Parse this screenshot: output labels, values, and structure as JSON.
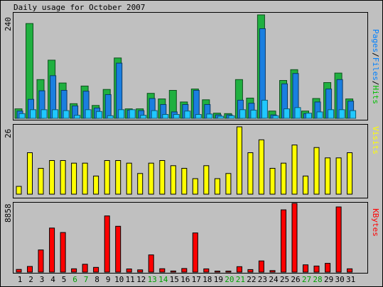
{
  "chart_data": {
    "type": "bar",
    "title": "Daily usage for October 2007",
    "categories": [
      "1",
      "2",
      "3",
      "4",
      "5",
      "6",
      "7",
      "8",
      "9",
      "10",
      "11",
      "12",
      "13",
      "14",
      "15",
      "16",
      "17",
      "18",
      "19",
      "20",
      "21",
      "22",
      "23",
      "24",
      "25",
      "26",
      "27",
      "28",
      "29",
      "30",
      "31"
    ],
    "weekend_days": [
      "6",
      "7",
      "13",
      "14",
      "20",
      "21",
      "27",
      "28"
    ],
    "panels": [
      {
        "id": "hits",
        "ymax_label": "240",
        "ymax": 240,
        "right_label": [
          {
            "text": "Pages",
            "color": "#0080ff"
          },
          {
            "text": "/",
            "color": "#000000"
          },
          {
            "text": "Files",
            "color": "#0080ff"
          },
          {
            "text": "/",
            "color": "#000000"
          },
          {
            "text": "Hits",
            "color": "#00c000"
          }
        ],
        "series": [
          {
            "name": "Hits",
            "color": "#20b040",
            "values": [
              22,
              220,
              90,
              135,
              82,
              34,
              75,
              30,
              67,
              140,
              22,
              22,
              58,
              45,
              65,
              38,
              68,
              43,
              12,
              11,
              90,
              47,
              240,
              17,
              88,
              113,
              17,
              46,
              83,
              105,
              45
            ]
          },
          {
            "name": "Files",
            "color": "#1a7fe0",
            "values": [
              17,
              44,
              64,
              99,
              65,
              29,
              63,
              24,
              55,
              128,
              19,
              18,
              46,
              32,
              15,
              32,
              65,
              32,
              8,
              8,
              42,
              35,
              208,
              8,
              80,
              104,
              11,
              38,
              68,
              90,
              40
            ]
          },
          {
            "name": "Pages",
            "color": "#20c8ff",
            "values": [
              11,
              20,
              20,
              20,
              18,
              7,
              20,
              16,
              6,
              20,
              20,
              7,
              18,
              9,
              9,
              17,
              9,
              10,
              5,
              6,
              20,
              19,
              42,
              6,
              22,
              25,
              12,
              15,
              20,
              20,
              18
            ]
          }
        ]
      },
      {
        "id": "visits",
        "ymax_label": "26",
        "ymax": 26,
        "right_label": [
          {
            "text": "Visits",
            "color": "#ffff00"
          }
        ],
        "series": [
          {
            "name": "Visits",
            "color": "#ffff00",
            "values": [
              3,
              16,
              10,
              13,
              13,
              12,
              12,
              7,
              13,
              13,
              12,
              8,
              12,
              13,
              11,
              10,
              6,
              11,
              6,
              8,
              26,
              16,
              21,
              10,
              12,
              19,
              7,
              18,
              14,
              14,
              16
            ]
          }
        ]
      },
      {
        "id": "kbytes",
        "ymax_label": "8858",
        "ymax": 8858,
        "right_label": [
          {
            "text": "KBytes",
            "color": "#ff0000"
          }
        ],
        "series": [
          {
            "name": "KBytes",
            "color": "#ff0000",
            "values": [
              349,
              728,
              2859,
              5680,
              5106,
              430,
              1010,
              614,
              7242,
              5905,
              410,
              293,
              2215,
              441,
              144,
              469,
              5046,
              422,
              112,
              128,
              702,
              329,
              1444,
              204,
              8025,
              8858,
              937,
              789,
              1132,
              8401,
              431
            ]
          }
        ]
      }
    ]
  }
}
